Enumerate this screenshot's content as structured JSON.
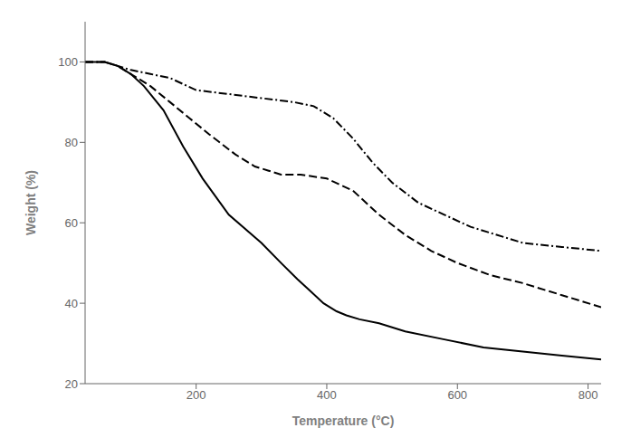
{
  "chart_data": {
    "type": "line",
    "title": "",
    "xlabel": "Temperature (°C)",
    "ylabel": "Weight (%)",
    "xlim": [
      30,
      820
    ],
    "ylim": [
      20,
      110
    ],
    "xticks": [
      200,
      400,
      600,
      800
    ],
    "yticks": [
      20,
      40,
      60,
      80,
      100
    ],
    "grid": false,
    "series": [
      {
        "color": "#000000",
        "line_style": "solid",
        "x": [
          30,
          60,
          80,
          100,
          120,
          150,
          180,
          210,
          250,
          300,
          330,
          355,
          375,
          395,
          415,
          430,
          450,
          480,
          520,
          580,
          640,
          700,
          760,
          820
        ],
        "values": [
          100,
          100,
          99,
          97,
          94,
          88,
          79,
          71,
          62,
          55,
          50,
          46,
          43,
          40,
          38,
          37,
          36,
          35,
          33,
          31,
          29,
          28,
          27,
          26
        ]
      },
      {
        "color": "#000000",
        "line_style": "dashed",
        "x": [
          30,
          60,
          80,
          100,
          130,
          160,
          190,
          220,
          260,
          290,
          310,
          330,
          360,
          400,
          440,
          480,
          520,
          560,
          600,
          650,
          700,
          760,
          820
        ],
        "values": [
          100,
          100,
          99,
          97,
          94,
          90,
          86,
          82,
          77,
          74,
          73,
          72,
          72,
          71,
          68,
          62,
          57,
          53,
          50,
          47,
          45,
          42,
          39
        ]
      },
      {
        "color": "#000000",
        "line_style": "dashdot",
        "x": [
          30,
          60,
          80,
          100,
          130,
          160,
          200,
          250,
          300,
          350,
          380,
          410,
          440,
          470,
          500,
          540,
          580,
          620,
          660,
          700,
          760,
          820
        ],
        "values": [
          100,
          100,
          99,
          98,
          97,
          96,
          93,
          92,
          91,
          90,
          89,
          86,
          81,
          75,
          70,
          65,
          62,
          59,
          57,
          55,
          54,
          53
        ]
      }
    ]
  }
}
